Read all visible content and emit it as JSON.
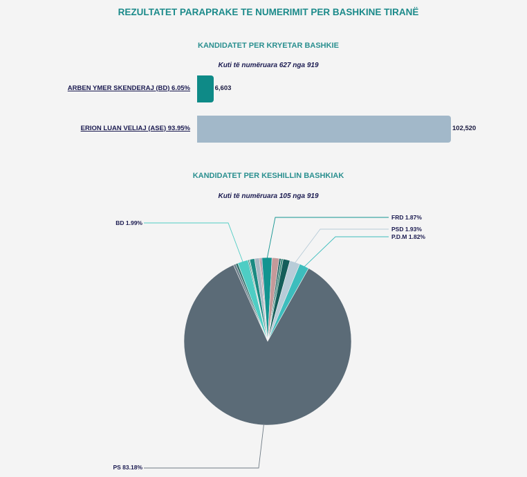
{
  "page": {
    "title": "REZULTATET PARAPRAKE TE NUMERIMIT PER BASHKINE TIRANË"
  },
  "mayor": {
    "title": "KANDIDATET PER KRYETAR BASHKIE",
    "subtitle": "Kuti të numëruara 627 nga 919"
  },
  "council": {
    "title": "KANDIDATET PER KESHILLIN BASHKIAK",
    "subtitle": "Kuti të numëruara 105 nga 919"
  },
  "chart_data": [
    {
      "type": "bar",
      "orientation": "horizontal",
      "categories": [
        "ARBEN YMER SKENDERAJ (BD) 6.05%",
        "ERION LUAN VELIAJ (ASE) 93.95%"
      ],
      "values": [
        6603,
        102520
      ],
      "value_labels": [
        "6,603",
        "102,520"
      ],
      "colors": [
        "#0e8a87",
        "#a2b8c9"
      ],
      "xlim": [
        0,
        102520
      ],
      "grid": false
    },
    {
      "type": "pie",
      "start_angle_deg": -21,
      "slices": [
        {
          "label": "BD 1.99%",
          "value": 1.99,
          "color": "#4ecdc4",
          "labeled": true
        },
        {
          "label": "",
          "value": 0.2,
          "color": "#2e7d6f",
          "labeled": false
        },
        {
          "label": "",
          "value": 0.15,
          "color": "#3a9d8f",
          "labeled": false
        },
        {
          "label": "",
          "value": 0.9,
          "color": "#1a8a82",
          "labeled": false
        },
        {
          "label": "",
          "value": 0.9,
          "color": "#a8b8c4",
          "labeled": false
        },
        {
          "label": "",
          "value": 0.25,
          "color": "#c09090",
          "labeled": false
        },
        {
          "label": "",
          "value": 0.25,
          "color": "#8a7a9a",
          "labeled": false
        },
        {
          "label": "FRD 1.87%",
          "value": 1.87,
          "color": "#129490",
          "labeled": true
        },
        {
          "label": "",
          "value": 1.35,
          "color": "#c49a9a",
          "labeled": false
        },
        {
          "label": "",
          "value": 0.35,
          "color": "#1a5e5e",
          "labeled": false
        },
        {
          "label": "",
          "value": 0.4,
          "color": "#3b8c7c",
          "labeled": false
        },
        {
          "label": "",
          "value": 1.3,
          "color": "#145e5a",
          "labeled": false
        },
        {
          "label": "PSD 1.93%",
          "value": 1.93,
          "color": "#b8ccd8",
          "labeled": true
        },
        {
          "label": "P.D.M 1.82%",
          "value": 1.82,
          "color": "#3dbdbd",
          "labeled": true
        },
        {
          "label": "PS 83.18%",
          "value": 83.18,
          "color": "#5b6b77",
          "labeled": true
        },
        {
          "label": "",
          "value": 0.45,
          "color": "#6d7f8c",
          "labeled": false
        },
        {
          "label": "",
          "value": 0.4,
          "color": "#2e6f6a",
          "labeled": false
        }
      ],
      "legend": "none"
    }
  ]
}
